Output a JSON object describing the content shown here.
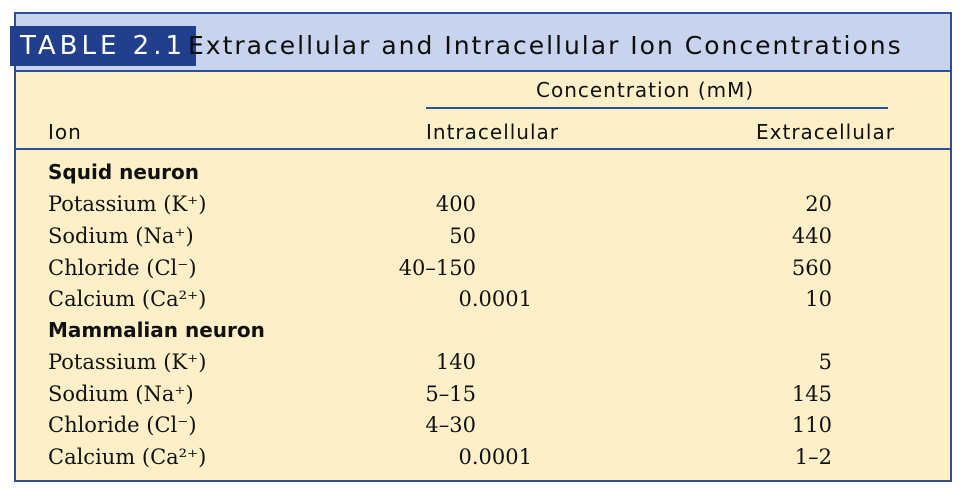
{
  "table": {
    "label": "TABLE 2.1",
    "title": "Extracellular and Intracellular Ion Concentrations",
    "concentration_header": "Concentration (mM)",
    "columns": {
      "ion": "Ion",
      "intracellular": "Intracellular",
      "extracellular": "Extracellular"
    },
    "groups": [
      {
        "name": "Squid neuron",
        "rows": [
          {
            "ion": "Potassium (K⁺)",
            "intracellular": "400",
            "extracellular": "20"
          },
          {
            "ion": "Sodium (Na⁺)",
            "intracellular": "50",
            "extracellular": "440"
          },
          {
            "ion": "Chloride (Cl⁻)",
            "intracellular": "40–150",
            "extracellular": "560"
          },
          {
            "ion": "Calcium (Ca²⁺)",
            "intracellular": "0.0001",
            "extracellular": "10"
          }
        ]
      },
      {
        "name": "Mammalian neuron",
        "rows": [
          {
            "ion": "Potassium (K⁺)",
            "intracellular": "140",
            "extracellular": "5"
          },
          {
            "ion": "Sodium (Na⁺)",
            "intracellular": "5–15",
            "extracellular": "145"
          },
          {
            "ion": "Chloride (Cl⁻)",
            "intracellular": "4–30",
            "extracellular": "110"
          },
          {
            "ion": "Calcium (Ca²⁺)",
            "intracellular": "0.0001",
            "extracellular": "1–2"
          }
        ]
      }
    ]
  }
}
